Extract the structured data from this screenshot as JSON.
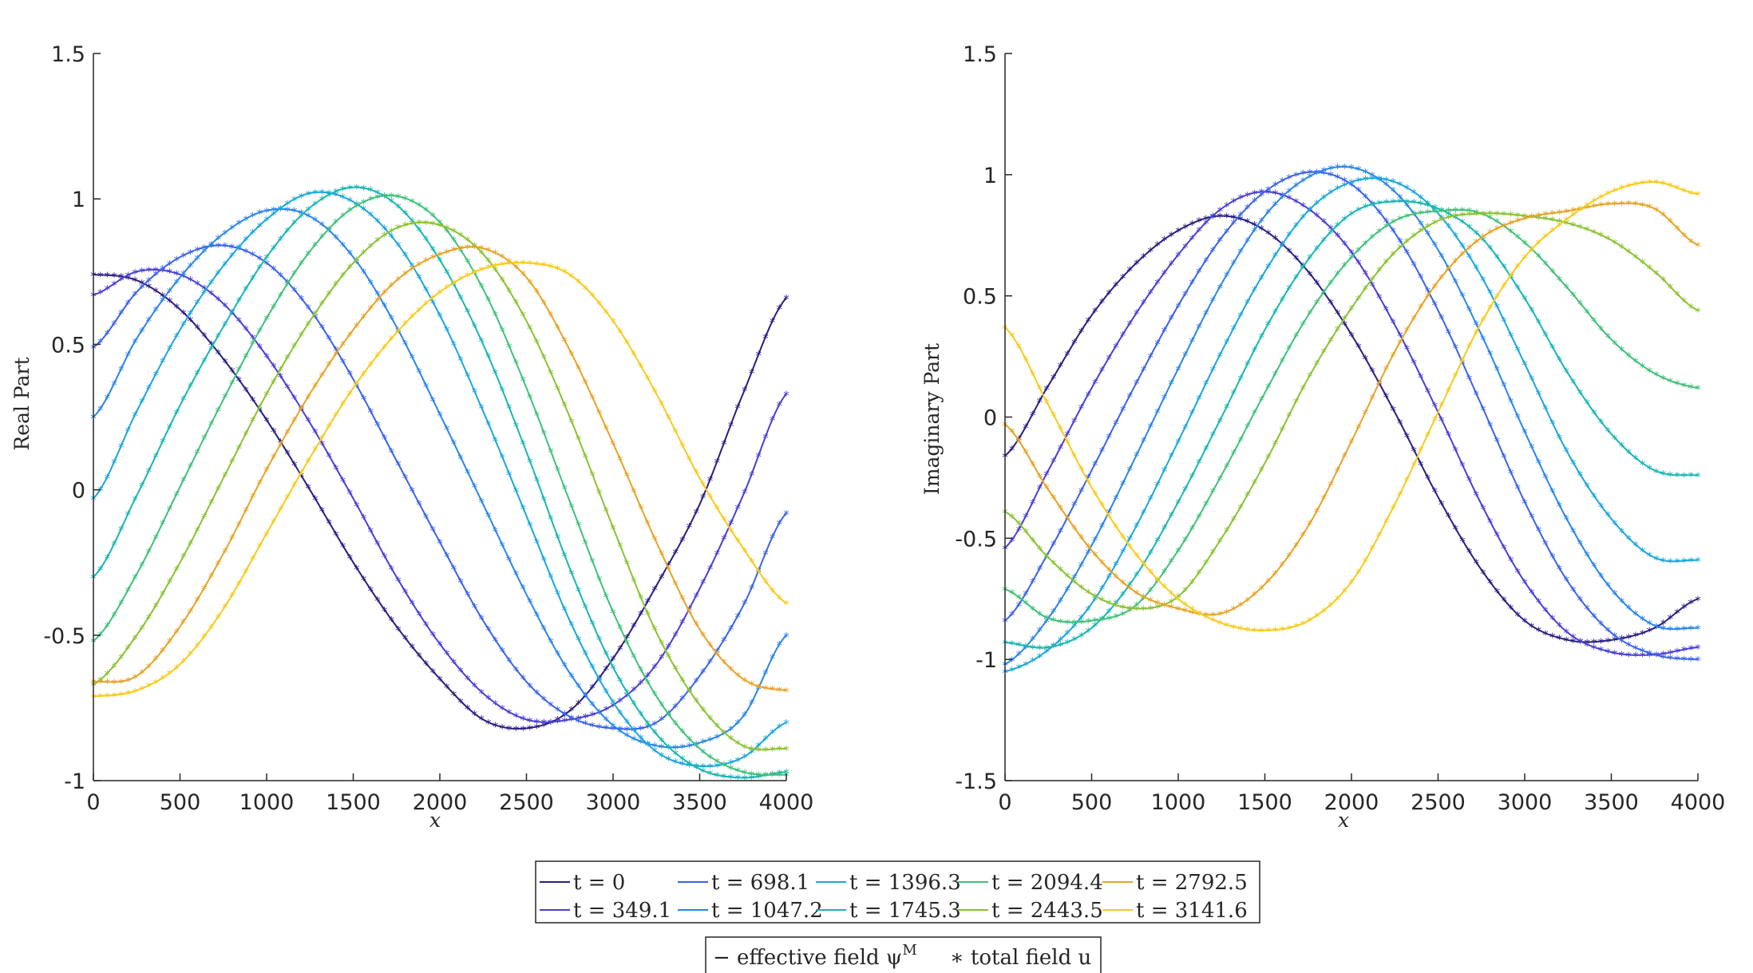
{
  "chart_data": [
    {
      "type": "line",
      "title": "",
      "xlabel": "x",
      "ylabel": "Real Part",
      "xlim": [
        0,
        4000
      ],
      "ylim": [
        -1,
        1.5
      ],
      "xticks": [
        0,
        500,
        1000,
        1500,
        2000,
        2500,
        3000,
        3500,
        4000
      ],
      "xtick_labels": [
        "0",
        "500",
        "1000",
        "1500",
        "2000",
        "2500",
        "3000",
        "3500",
        "4000"
      ],
      "yticks": [
        -1,
        -0.5,
        0,
        0.5,
        1,
        1.5
      ],
      "ytick_labels": [
        "-1",
        "-0.5",
        "0",
        "0.5",
        "1",
        "1.5"
      ],
      "grid": false,
      "series": [
        {
          "name": "t = 0",
          "x": [
            0,
            250,
            500,
            750,
            1000,
            1250,
            1500,
            1750,
            2000,
            2250,
            2500,
            2750,
            3000,
            3250,
            3500,
            3750,
            4000
          ],
          "values": [
            0.74,
            0.72,
            0.62,
            0.45,
            0.24,
            0.0,
            -0.25,
            -0.47,
            -0.65,
            -0.79,
            -0.82,
            -0.76,
            -0.58,
            -0.33,
            -0.05,
            0.33,
            0.66
          ]
        },
        {
          "name": "t = 349.1",
          "x": [
            0,
            250,
            500,
            750,
            1000,
            1250,
            1500,
            1750,
            2000,
            2250,
            2500,
            2750,
            3000,
            3250,
            3500,
            3750,
            4000
          ],
          "values": [
            0.67,
            0.75,
            0.74,
            0.64,
            0.46,
            0.23,
            -0.03,
            -0.3,
            -0.53,
            -0.7,
            -0.79,
            -0.79,
            -0.74,
            -0.6,
            -0.34,
            -0.02,
            0.33
          ]
        },
        {
          "name": "t = 698.1",
          "x": [
            0,
            250,
            500,
            750,
            1000,
            1250,
            1500,
            1750,
            2000,
            2250,
            2500,
            2750,
            3000,
            3250,
            3500,
            3750,
            4000
          ],
          "values": [
            0.49,
            0.68,
            0.8,
            0.84,
            0.78,
            0.62,
            0.38,
            0.1,
            -0.18,
            -0.45,
            -0.66,
            -0.78,
            -0.82,
            -0.8,
            -0.64,
            -0.4,
            -0.08
          ]
        },
        {
          "name": "t = 1047.2",
          "x": [
            0,
            250,
            500,
            750,
            1000,
            1250,
            1500,
            1750,
            2000,
            2250,
            2500,
            2750,
            3000,
            3250,
            3500,
            3750,
            4000
          ],
          "values": [
            0.25,
            0.52,
            0.73,
            0.88,
            0.96,
            0.94,
            0.8,
            0.56,
            0.26,
            -0.05,
            -0.36,
            -0.63,
            -0.81,
            -0.88,
            -0.87,
            -0.78,
            -0.5
          ]
        },
        {
          "name": "t = 1396.3",
          "x": [
            0,
            250,
            500,
            750,
            1000,
            1250,
            1500,
            1750,
            2000,
            2250,
            2500,
            2750,
            3000,
            3250,
            3500,
            3750,
            4000
          ],
          "values": [
            -0.03,
            0.27,
            0.55,
            0.77,
            0.93,
            1.02,
            0.99,
            0.85,
            0.6,
            0.27,
            -0.09,
            -0.45,
            -0.73,
            -0.9,
            -0.95,
            -0.92,
            -0.8
          ]
        },
        {
          "name": "t = 1745.3",
          "x": [
            0,
            250,
            500,
            750,
            1000,
            1250,
            1500,
            1750,
            2000,
            2250,
            2500,
            2750,
            3000,
            3250,
            3500,
            3750,
            4000
          ],
          "values": [
            -0.3,
            -0.02,
            0.29,
            0.56,
            0.8,
            0.97,
            1.04,
            0.98,
            0.79,
            0.5,
            0.13,
            -0.27,
            -0.61,
            -0.84,
            -0.96,
            -0.99,
            -0.97
          ]
        },
        {
          "name": "t = 2094.4",
          "x": [
            0,
            250,
            500,
            750,
            1000,
            1250,
            1500,
            1750,
            2000,
            2250,
            2500,
            2750,
            3000,
            3250,
            3500,
            3750,
            4000
          ],
          "values": [
            -0.52,
            -0.29,
            0.01,
            0.31,
            0.59,
            0.82,
            0.97,
            1.01,
            0.92,
            0.69,
            0.35,
            -0.04,
            -0.42,
            -0.71,
            -0.89,
            -0.97,
            -0.98
          ]
        },
        {
          "name": "t = 2443.5",
          "x": [
            0,
            250,
            500,
            750,
            1000,
            1250,
            1500,
            1750,
            2000,
            2250,
            2500,
            2750,
            3000,
            3250,
            3500,
            3750,
            4000
          ],
          "values": [
            -0.67,
            -0.5,
            -0.25,
            0.04,
            0.33,
            0.58,
            0.78,
            0.9,
            0.91,
            0.81,
            0.58,
            0.25,
            -0.13,
            -0.49,
            -0.74,
            -0.88,
            -0.89
          ]
        },
        {
          "name": "t = 2792.5",
          "x": [
            0,
            250,
            500,
            750,
            1000,
            1250,
            1500,
            1750,
            2000,
            2250,
            2500,
            2750,
            3000,
            3250,
            3500,
            3750,
            4000
          ],
          "values": [
            -0.66,
            -0.64,
            -0.47,
            -0.22,
            0.07,
            0.33,
            0.55,
            0.72,
            0.81,
            0.83,
            0.73,
            0.48,
            0.16,
            -0.18,
            -0.48,
            -0.65,
            -0.69
          ]
        },
        {
          "name": "t = 3141.6",
          "x": [
            0,
            250,
            500,
            750,
            1000,
            1250,
            1500,
            1750,
            2000,
            2250,
            2500,
            2750,
            3000,
            3250,
            3500,
            3750,
            4000
          ],
          "values": [
            -0.71,
            -0.69,
            -0.6,
            -0.41,
            -0.15,
            0.11,
            0.35,
            0.54,
            0.68,
            0.76,
            0.78,
            0.74,
            0.58,
            0.33,
            0.04,
            -0.2,
            -0.39
          ]
        }
      ]
    },
    {
      "type": "line",
      "title": "",
      "xlabel": "x",
      "ylabel": "Imaginary Part",
      "xlim": [
        0,
        4000
      ],
      "ylim": [
        -1.5,
        1.5
      ],
      "xticks": [
        0,
        500,
        1000,
        1500,
        2000,
        2500,
        3000,
        3500,
        4000
      ],
      "xtick_labels": [
        "0",
        "500",
        "1000",
        "1500",
        "2000",
        "2500",
        "3000",
        "3500",
        "4000"
      ],
      "yticks": [
        -1.5,
        -1,
        -0.5,
        0,
        0.5,
        1,
        1.5
      ],
      "ytick_labels": [
        "-1.5",
        "-1",
        "-0.5",
        "0",
        "0.5",
        "1",
        "1.5"
      ],
      "grid": false,
      "series": [
        {
          "name": "t = 0",
          "x": [
            0,
            250,
            500,
            750,
            1000,
            1250,
            1500,
            1750,
            2000,
            2250,
            2500,
            2750,
            3000,
            3250,
            3500,
            3750,
            4000
          ],
          "values": [
            -0.16,
            0.13,
            0.42,
            0.63,
            0.77,
            0.83,
            0.77,
            0.6,
            0.34,
            0.02,
            -0.33,
            -0.63,
            -0.84,
            -0.92,
            -0.92,
            -0.87,
            -0.75
          ]
        },
        {
          "name": "t = 349.1",
          "x": [
            0,
            250,
            500,
            750,
            1000,
            1250,
            1500,
            1750,
            2000,
            2250,
            2500,
            2750,
            3000,
            3250,
            3500,
            3750,
            4000
          ],
          "values": [
            -0.54,
            -0.22,
            0.12,
            0.42,
            0.67,
            0.86,
            0.93,
            0.86,
            0.68,
            0.38,
            0.02,
            -0.36,
            -0.68,
            -0.89,
            -0.97,
            -0.98,
            -0.95
          ]
        },
        {
          "name": "t = 698.1",
          "x": [
            0,
            250,
            500,
            750,
            1000,
            1250,
            1500,
            1750,
            2000,
            2250,
            2500,
            2750,
            3000,
            3250,
            3500,
            3750,
            4000
          ],
          "values": [
            -0.84,
            -0.56,
            -0.22,
            0.13,
            0.46,
            0.74,
            0.93,
            1.01,
            0.96,
            0.76,
            0.44,
            0.05,
            -0.35,
            -0.68,
            -0.89,
            -0.98,
            -1.0
          ]
        },
        {
          "name": "t = 1047.2",
          "x": [
            0,
            250,
            500,
            750,
            1000,
            1250,
            1500,
            1750,
            2000,
            2250,
            2500,
            2750,
            3000,
            3250,
            3500,
            3750,
            4000
          ],
          "values": [
            -1.02,
            -0.83,
            -0.53,
            -0.17,
            0.2,
            0.55,
            0.83,
            0.99,
            1.03,
            0.93,
            0.69,
            0.34,
            -0.06,
            -0.43,
            -0.71,
            -0.86,
            -0.87
          ]
        },
        {
          "name": "t = 1396.3",
          "x": [
            0,
            250,
            500,
            750,
            1000,
            1250,
            1500,
            1750,
            2000,
            2250,
            2500,
            2750,
            3000,
            3250,
            3500,
            3750,
            4000
          ],
          "values": [
            -1.05,
            -0.96,
            -0.77,
            -0.46,
            -0.1,
            0.27,
            0.6,
            0.85,
            0.97,
            0.97,
            0.84,
            0.58,
            0.22,
            -0.15,
            -0.42,
            -0.58,
            -0.59
          ]
        },
        {
          "name": "t = 1745.3",
          "x": [
            0,
            250,
            500,
            750,
            1000,
            1250,
            1500,
            1750,
            2000,
            2250,
            2500,
            2750,
            3000,
            3250,
            3500,
            3750,
            4000
          ],
          "values": [
            -0.93,
            -0.95,
            -0.87,
            -0.66,
            -0.35,
            0.0,
            0.36,
            0.65,
            0.84,
            0.89,
            0.86,
            0.74,
            0.49,
            0.18,
            -0.07,
            -0.22,
            -0.24
          ]
        },
        {
          "name": "t = 2094.4",
          "x": [
            0,
            250,
            500,
            750,
            1000,
            1250,
            1500,
            1750,
            2000,
            2250,
            2500,
            2750,
            3000,
            3250,
            3500,
            3750,
            4000
          ],
          "values": [
            -0.71,
            -0.83,
            -0.84,
            -0.78,
            -0.55,
            -0.24,
            0.1,
            0.42,
            0.66,
            0.81,
            0.85,
            0.84,
            0.72,
            0.53,
            0.32,
            0.18,
            0.12
          ]
        },
        {
          "name": "t = 2443.5",
          "x": [
            0,
            250,
            500,
            750,
            1000,
            1250,
            1500,
            1750,
            2000,
            2250,
            2500,
            2750,
            3000,
            3250,
            3500,
            3750,
            4000
          ],
          "values": [
            -0.39,
            -0.58,
            -0.73,
            -0.79,
            -0.74,
            -0.5,
            -0.19,
            0.16,
            0.45,
            0.68,
            0.81,
            0.84,
            0.83,
            0.8,
            0.73,
            0.6,
            0.44
          ]
        },
        {
          "name": "t = 2792.5",
          "x": [
            0,
            250,
            500,
            750,
            1000,
            1250,
            1500,
            1750,
            2000,
            2250,
            2500,
            2750,
            3000,
            3250,
            3500,
            3750,
            4000
          ],
          "values": [
            -0.03,
            -0.3,
            -0.55,
            -0.72,
            -0.79,
            -0.81,
            -0.69,
            -0.45,
            -0.1,
            0.27,
            0.56,
            0.74,
            0.82,
            0.85,
            0.88,
            0.86,
            0.71
          ]
        },
        {
          "name": "t = 3141.6",
          "x": [
            0,
            250,
            500,
            750,
            1000,
            1250,
            1500,
            1750,
            2000,
            2250,
            2500,
            2750,
            3000,
            3250,
            3500,
            3750,
            4000
          ],
          "values": [
            0.37,
            0.05,
            -0.29,
            -0.56,
            -0.75,
            -0.85,
            -0.88,
            -0.84,
            -0.68,
            -0.36,
            0.02,
            0.39,
            0.66,
            0.82,
            0.93,
            0.97,
            0.92
          ]
        }
      ]
    }
  ],
  "legend_times": {
    "labels": [
      "t = 0",
      "t = 349.1",
      "t = 698.1",
      "t = 1047.2",
      "t = 1396.3",
      "t = 1745.3",
      "t = 2094.4",
      "t = 2443.5",
      "t = 2792.5",
      "t = 3141.6"
    ],
    "colors": [
      "#2a1e82",
      "#4a3fd4",
      "#3a63e8",
      "#2a85e8",
      "#1aa6dc",
      "#18b6b3",
      "#40c07a",
      "#8ac233",
      "#e6a325",
      "#f6cb1c"
    ]
  },
  "legend_style": {
    "line_text": "− effective field ψ",
    "line_sup": "M",
    "marker_text": "∗ total field u"
  }
}
